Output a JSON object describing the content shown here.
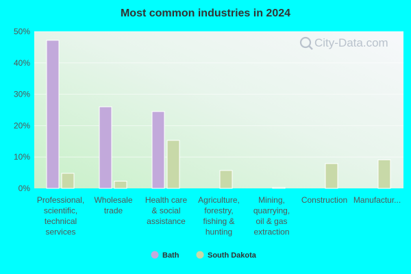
{
  "chart_data": {
    "type": "bar",
    "title": "Most common industries in 2024",
    "categories": [
      [
        "Professional,",
        "scientific,",
        "technical",
        "services"
      ],
      [
        "Wholesale",
        "trade"
      ],
      [
        "Health care",
        "& social",
        "assistance"
      ],
      [
        "Agriculture,",
        "forestry,",
        "fishing &",
        "hunting"
      ],
      [
        "Mining,",
        "quarrying,",
        "oil & gas",
        "extraction"
      ],
      [
        "Construction"
      ],
      [
        "Manufactur..."
      ]
    ],
    "series": [
      {
        "name": "Bath",
        "color": "#c2a9db",
        "values": [
          47.2,
          26.0,
          24.5,
          0,
          0,
          0,
          0
        ]
      },
      {
        "name": "South Dakota",
        "color": "#c8d9a8",
        "values": [
          4.8,
          2.3,
          15.3,
          5.7,
          0.3,
          7.9,
          9.1
        ]
      }
    ],
    "ylim": [
      0,
      50
    ],
    "yticks": [
      "0%",
      "10%",
      "20%",
      "30%",
      "40%",
      "50%"
    ],
    "grid": true,
    "legend_position": "bottom"
  },
  "watermark": "City-Data.com"
}
